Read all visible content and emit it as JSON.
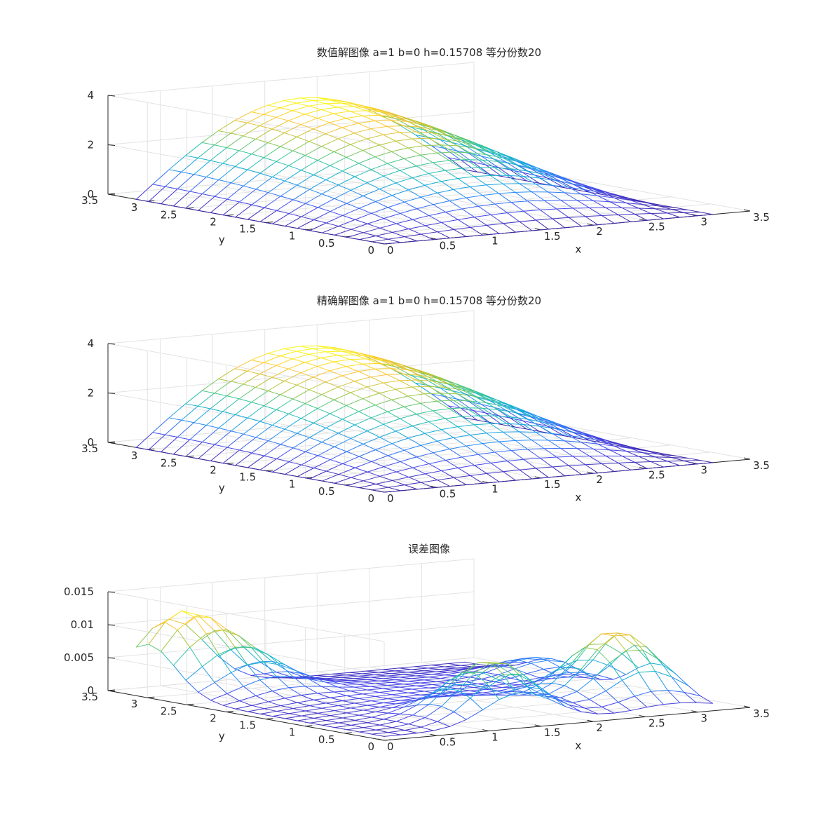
{
  "figure": {
    "panels": [
      {
        "title": "数值解图像  a=1  b=0  h=0.15708  等分份数20"
      },
      {
        "title": "精确解图像  a=1  b=0  h=0.15708  等分份数20"
      },
      {
        "title": "误差图像"
      }
    ]
  },
  "chart_data": [
    {
      "type": "surface-mesh",
      "title": "数值解图像  a=1  b=0  h=0.15708  等分份数20",
      "xlabel": "x",
      "ylabel": "y",
      "zlabel": "",
      "x_range": [
        0,
        3.14159
      ],
      "y_range": [
        0,
        3.14159
      ],
      "grid_divisions": 20,
      "xlim": [
        0,
        3.5
      ],
      "ylim": [
        0,
        3.5
      ],
      "zlim": [
        0,
        4
      ],
      "x_ticks": [
        0,
        0.5,
        1,
        1.5,
        2,
        2.5,
        3,
        3.5
      ],
      "y_ticks": [
        0,
        0.5,
        1,
        1.5,
        2,
        2.5,
        3,
        3.5
      ],
      "z_ticks": [
        0,
        2,
        4
      ],
      "z_tick_labels": [
        "0",
        "2",
        "4"
      ],
      "z_max": 3.5,
      "surface": "z(x,y) ≈ 3.5·sin(x)·sin(y/2)",
      "colormap": "parula",
      "grid": true
    },
    {
      "type": "surface-mesh",
      "title": "精确解图像  a=1  b=0  h=0.15708  等分份数20",
      "xlabel": "x",
      "ylabel": "y",
      "zlabel": "",
      "x_range": [
        0,
        3.14159
      ],
      "y_range": [
        0,
        3.14159
      ],
      "grid_divisions": 20,
      "xlim": [
        0,
        3.5
      ],
      "ylim": [
        0,
        3.5
      ],
      "zlim": [
        0,
        4
      ],
      "x_ticks": [
        0,
        0.5,
        1,
        1.5,
        2,
        2.5,
        3,
        3.5
      ],
      "y_ticks": [
        0,
        0.5,
        1,
        1.5,
        2,
        2.5,
        3,
        3.5
      ],
      "z_ticks": [
        0,
        2,
        4
      ],
      "z_tick_labels": [
        "0",
        "2",
        "4"
      ],
      "z_max": 3.5,
      "surface": "z(x,y) ≈ 3.5·sin(x)·sin(y/2)",
      "colormap": "parula",
      "grid": true
    },
    {
      "type": "surface-mesh",
      "title": "误差图像",
      "xlabel": "x",
      "ylabel": "y",
      "zlabel": "",
      "x_range": [
        0,
        3.14159
      ],
      "y_range": [
        0,
        3.14159
      ],
      "grid_divisions": 20,
      "xlim": [
        0,
        3.5
      ],
      "ylim": [
        0,
        3.5
      ],
      "zlim": [
        0,
        0.015
      ],
      "x_ticks": [
        0,
        0.5,
        1,
        1.5,
        2,
        2.5,
        3,
        3.5
      ],
      "y_ticks": [
        0,
        0.5,
        1,
        1.5,
        2,
        2.5,
        3,
        3.5
      ],
      "z_ticks": [
        0,
        0.005,
        0.01,
        0.015
      ],
      "z_tick_labels": [
        "0",
        "0.005",
        "0.01",
        "0.015"
      ],
      "z_max": 0.013,
      "peaks": [
        {
          "x": 0.3,
          "y": 3.0,
          "z": 0.011
        },
        {
          "x": 1.3,
          "y": 0.35,
          "z": 0.0085
        },
        {
          "x": 0.65,
          "y": 2.55,
          "z": 0.0045
        },
        {
          "x": 2.75,
          "y": 0.7,
          "z": 0.0103
        },
        {
          "x": 3.0,
          "y": 2.0,
          "z": 0.0032
        }
      ],
      "colormap": "parula",
      "grid": true
    }
  ]
}
